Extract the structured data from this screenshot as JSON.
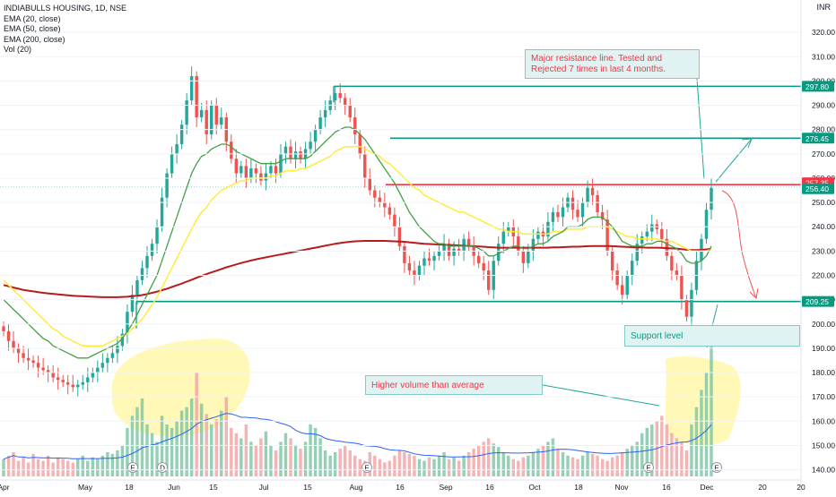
{
  "header": {
    "title": "INDIABULLS HOUSING, 1D, NSE",
    "indicators": [
      "EMA (20, close)",
      "EMA (50, close)",
      "EMA (200, close)",
      "Vol (20)"
    ],
    "currency": "INR"
  },
  "chart_data": {
    "type": "candlestick",
    "ylim": [
      138,
      330
    ],
    "y_ticks": [
      140,
      150,
      160,
      170,
      180,
      190,
      200,
      210,
      220,
      230,
      240,
      250,
      260,
      270,
      280,
      290,
      300,
      310,
      320
    ],
    "x_ticks": [
      "Apr",
      "May",
      "18",
      "Jun",
      "15",
      "Jul",
      "15",
      "Aug",
      "16",
      "Sep",
      "16",
      "Oct",
      "18",
      "Nov",
      "16",
      "Dec",
      "20",
      "20"
    ],
    "price_labels": [
      {
        "value": "297.80",
        "price": 297.8,
        "color": "#089981"
      },
      {
        "value": "276.45",
        "price": 276.45,
        "color": "#089981"
      },
      {
        "value": "257.35",
        "price": 257.35,
        "color": "#f23645"
      },
      {
        "value": "256.40",
        "price": 256.4,
        "color": "#089981"
      },
      {
        "value": "209.25",
        "price": 209.25,
        "color": "#089981"
      }
    ],
    "horizontal_lines": [
      {
        "price": 297.8,
        "color": "#089981"
      },
      {
        "price": 276.45,
        "color": "#089981"
      },
      {
        "price": 257.35,
        "color": "#f23645"
      },
      {
        "price": 209.25,
        "color": "#089981"
      }
    ],
    "close": [
      197,
      193,
      190,
      188,
      186,
      185,
      184,
      182,
      181,
      180,
      178,
      177,
      176,
      175,
      174,
      175,
      176,
      178,
      180,
      182,
      184,
      186,
      188,
      191,
      196,
      205,
      212,
      218,
      223,
      228,
      233,
      240,
      252,
      262,
      270,
      274,
      282,
      292,
      302,
      285,
      288,
      278,
      290,
      282,
      285,
      275,
      268,
      262,
      265,
      260,
      264,
      262,
      259,
      262,
      265,
      262,
      270,
      273,
      268,
      271,
      268,
      272,
      275,
      280,
      285,
      288,
      292,
      295,
      293,
      290,
      285,
      278,
      270,
      260,
      255,
      252,
      250,
      248,
      245,
      240,
      232,
      225,
      222,
      220,
      224,
      227,
      226,
      228,
      230,
      233,
      228,
      231,
      230,
      235,
      232,
      228,
      225,
      222,
      214,
      226,
      233,
      238,
      240,
      236,
      230,
      225,
      230,
      235,
      238,
      236,
      242,
      246,
      244,
      248,
      252,
      247,
      244,
      250,
      256,
      253,
      246,
      243,
      230,
      222,
      216,
      212,
      220,
      226,
      233,
      236,
      238,
      241,
      239,
      235,
      228,
      222,
      220,
      210,
      203,
      214,
      226,
      235,
      247,
      256
    ],
    "ema20": [
      210,
      208,
      206,
      204,
      202,
      200,
      198,
      196,
      194,
      193,
      191,
      190,
      189,
      188,
      187,
      186,
      186,
      186,
      187,
      188,
      189,
      190,
      191,
      192,
      194,
      197,
      200,
      204,
      208,
      212,
      216,
      220,
      226,
      232,
      238,
      244,
      250,
      256,
      262,
      266,
      269,
      270,
      272,
      273,
      274,
      274,
      273,
      271,
      270,
      269,
      268,
      267,
      266,
      266,
      266,
      266,
      267,
      268,
      268,
      268,
      268,
      268,
      269,
      271,
      273,
      275,
      277,
      279,
      280,
      281,
      281,
      280,
      278,
      276,
      273,
      270,
      267,
      264,
      261,
      258,
      254,
      250,
      246,
      243,
      240,
      238,
      236,
      234,
      233,
      233,
      232,
      232,
      232,
      232,
      232,
      232,
      231,
      230,
      228,
      228,
      229,
      230,
      231,
      232,
      232,
      231,
      231,
      232,
      233,
      233,
      234,
      236,
      237,
      238,
      240,
      240,
      240,
      241,
      243,
      244,
      244,
      244,
      242,
      240,
      237,
      234,
      233,
      232,
      232,
      232,
      233,
      233,
      234,
      234,
      233,
      232,
      231,
      229,
      226,
      225,
      225,
      226,
      228,
      232
    ],
    "ema50": [
      218,
      216,
      214,
      212,
      210,
      208,
      206,
      204,
      202,
      200,
      198,
      197,
      195,
      194,
      193,
      192,
      191,
      191,
      191,
      191,
      191,
      192,
      193,
      194,
      195,
      196,
      198,
      200,
      202,
      205,
      208,
      211,
      215,
      219,
      223,
      227,
      231,
      235,
      239,
      243,
      246,
      248,
      251,
      253,
      255,
      256,
      257,
      258,
      259,
      259,
      260,
      260,
      260,
      260,
      261,
      261,
      262,
      263,
      263,
      263,
      264,
      264,
      265,
      266,
      267,
      268,
      269,
      271,
      272,
      273,
      273,
      273,
      273,
      272,
      271,
      270,
      269,
      267,
      266,
      264,
      262,
      260,
      258,
      256,
      255,
      253,
      252,
      251,
      250,
      249,
      248,
      247,
      246,
      246,
      245,
      244,
      243,
      242,
      241,
      240,
      239,
      239,
      238,
      238,
      238,
      237,
      237,
      237,
      237,
      237,
      237,
      238,
      238,
      238,
      239,
      239,
      239,
      239,
      240,
      240,
      240,
      240,
      240,
      239,
      238,
      237,
      236,
      236,
      235,
      235,
      235,
      235,
      235,
      234,
      234,
      234,
      233,
      232,
      231,
      230,
      230,
      230,
      230,
      231
    ],
    "ema200": [
      216,
      215.5,
      215,
      214.5,
      214,
      213.7,
      213.4,
      213.1,
      212.8,
      212.6,
      212.4,
      212.2,
      212,
      211.8,
      211.6,
      211.5,
      211.4,
      211.3,
      211.2,
      211.1,
      211,
      211,
      211,
      211,
      211.1,
      211.2,
      211.4,
      211.6,
      211.9,
      212.3,
      212.8,
      213.3,
      213.9,
      214.5,
      215.2,
      215.9,
      216.6,
      217.4,
      218.2,
      219,
      219.8,
      220.5,
      221.2,
      221.9,
      222.6,
      223.3,
      223.9,
      224.5,
      225.1,
      225.6,
      226.1,
      226.6,
      227,
      227.4,
      227.8,
      228.2,
      228.6,
      229,
      229.4,
      229.8,
      230.2,
      230.6,
      231,
      231.4,
      231.8,
      232.2,
      232.6,
      233,
      233.3,
      233.6,
      233.8,
      234,
      234.1,
      234.2,
      234.2,
      234.2,
      234.2,
      234.2,
      234.1,
      234,
      233.9,
      233.8,
      233.6,
      233.4,
      233.2,
      233,
      232.9,
      232.8,
      232.7,
      232.6,
      232.5,
      232.4,
      232.3,
      232.2,
      232.1,
      232,
      231.9,
      231.8,
      231.6,
      231.5,
      231.4,
      231.4,
      231.4,
      231.4,
      231.4,
      231.4,
      231.4,
      231.4,
      231.4,
      231.4,
      231.4,
      231.5,
      231.5,
      231.6,
      231.7,
      231.8,
      231.8,
      231.9,
      232,
      232.1,
      232.1,
      232.1,
      232.1,
      232,
      231.9,
      231.8,
      231.7,
      231.6,
      231.5,
      231.5,
      231.4,
      231.4,
      231.4,
      231.3,
      231.2,
      231.1,
      231,
      230.8,
      230.5,
      230.4,
      230.4,
      230.5,
      230.7,
      231
    ],
    "volume": [
      10,
      12,
      14,
      9,
      11,
      8,
      13,
      10,
      9,
      12,
      8,
      11,
      10,
      9,
      8,
      10,
      12,
      9,
      11,
      10,
      12,
      14,
      13,
      15,
      18,
      28,
      35,
      40,
      45,
      30,
      25,
      20,
      35,
      30,
      28,
      32,
      38,
      40,
      45,
      60,
      42,
      36,
      30,
      33,
      38,
      46,
      28,
      25,
      22,
      30,
      20,
      18,
      22,
      26,
      18,
      15,
      20,
      25,
      22,
      18,
      16,
      20,
      30,
      28,
      22,
      15,
      12,
      14,
      16,
      18,
      15,
      12,
      10,
      9,
      14,
      12,
      10,
      8,
      9,
      12,
      15,
      14,
      13,
      12,
      10,
      9,
      11,
      10,
      12,
      14,
      10,
      11,
      9,
      12,
      14,
      16,
      18,
      20,
      22,
      19,
      17,
      14,
      12,
      10,
      9,
      11,
      12,
      14,
      16,
      18,
      20,
      22,
      16,
      14,
      12,
      11,
      10,
      12,
      14,
      13,
      12,
      10,
      9,
      11,
      12,
      14,
      16,
      18,
      20,
      25,
      28,
      30,
      32,
      35,
      30,
      25,
      22,
      20,
      15,
      30,
      40,
      50,
      60,
      75
    ]
  },
  "annotations": {
    "resistance_note": "Major resistance line. Tested and Rejected 7 times in last 4 months.",
    "support_note": "Support level",
    "volume_note": "Higher volume than average"
  },
  "event_markers": [
    "E",
    "D",
    "E",
    "E",
    "E"
  ],
  "colors": {
    "up": "#26a69a",
    "down": "#ef5350",
    "ema20": "#43a047",
    "ema50": "#ffeb3b",
    "ema200": "#b71c1c",
    "vol_ma": "#2962ff",
    "highlight": "#fff59d",
    "callout_bg": "#e0f2f1",
    "callout_border": "#80cbc4",
    "resistance_text": "#f23645",
    "support_text": "#089981"
  }
}
